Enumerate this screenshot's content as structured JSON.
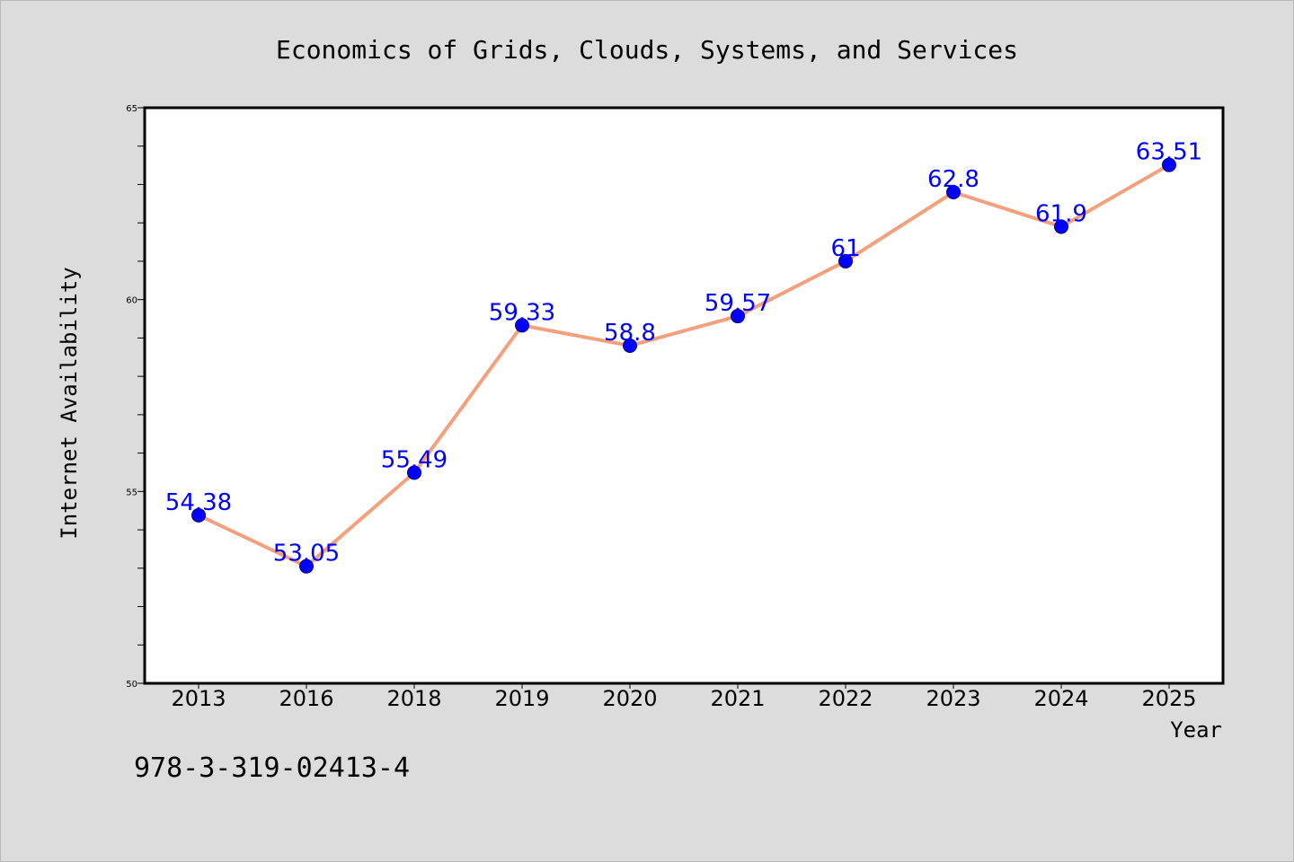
{
  "chart_data": {
    "type": "line",
    "title": "Economics of Grids, Clouds, Systems, and Services",
    "xlabel": "Year",
    "ylabel": "Internet Availability",
    "categories": [
      "2013",
      "2016",
      "2018",
      "2019",
      "2020",
      "2021",
      "2022",
      "2023",
      "2024",
      "2025"
    ],
    "values": [
      54.38,
      53.05,
      55.49,
      59.33,
      58.8,
      59.57,
      61,
      62.8,
      61.9,
      63.51
    ],
    "data_labels": [
      "54.38",
      "53.05",
      "55.49",
      "59.33",
      "58.8",
      "59.57",
      "61",
      "62.8",
      "61.9",
      "63.51"
    ],
    "ylim": [
      50,
      65
    ],
    "yticks": [
      "50",
      "55",
      "60",
      "65"
    ],
    "y_minor_step": 1,
    "grid": false,
    "legend": "none",
    "colors": {
      "line": "#f4a07c",
      "marker": "#0000ff",
      "marker_edge": "#000080",
      "data_label": "#0000ff",
      "plot_background": "#ffffff",
      "page_background": "#dcdcdc"
    }
  },
  "annotation": "978-3-319-02413-4"
}
